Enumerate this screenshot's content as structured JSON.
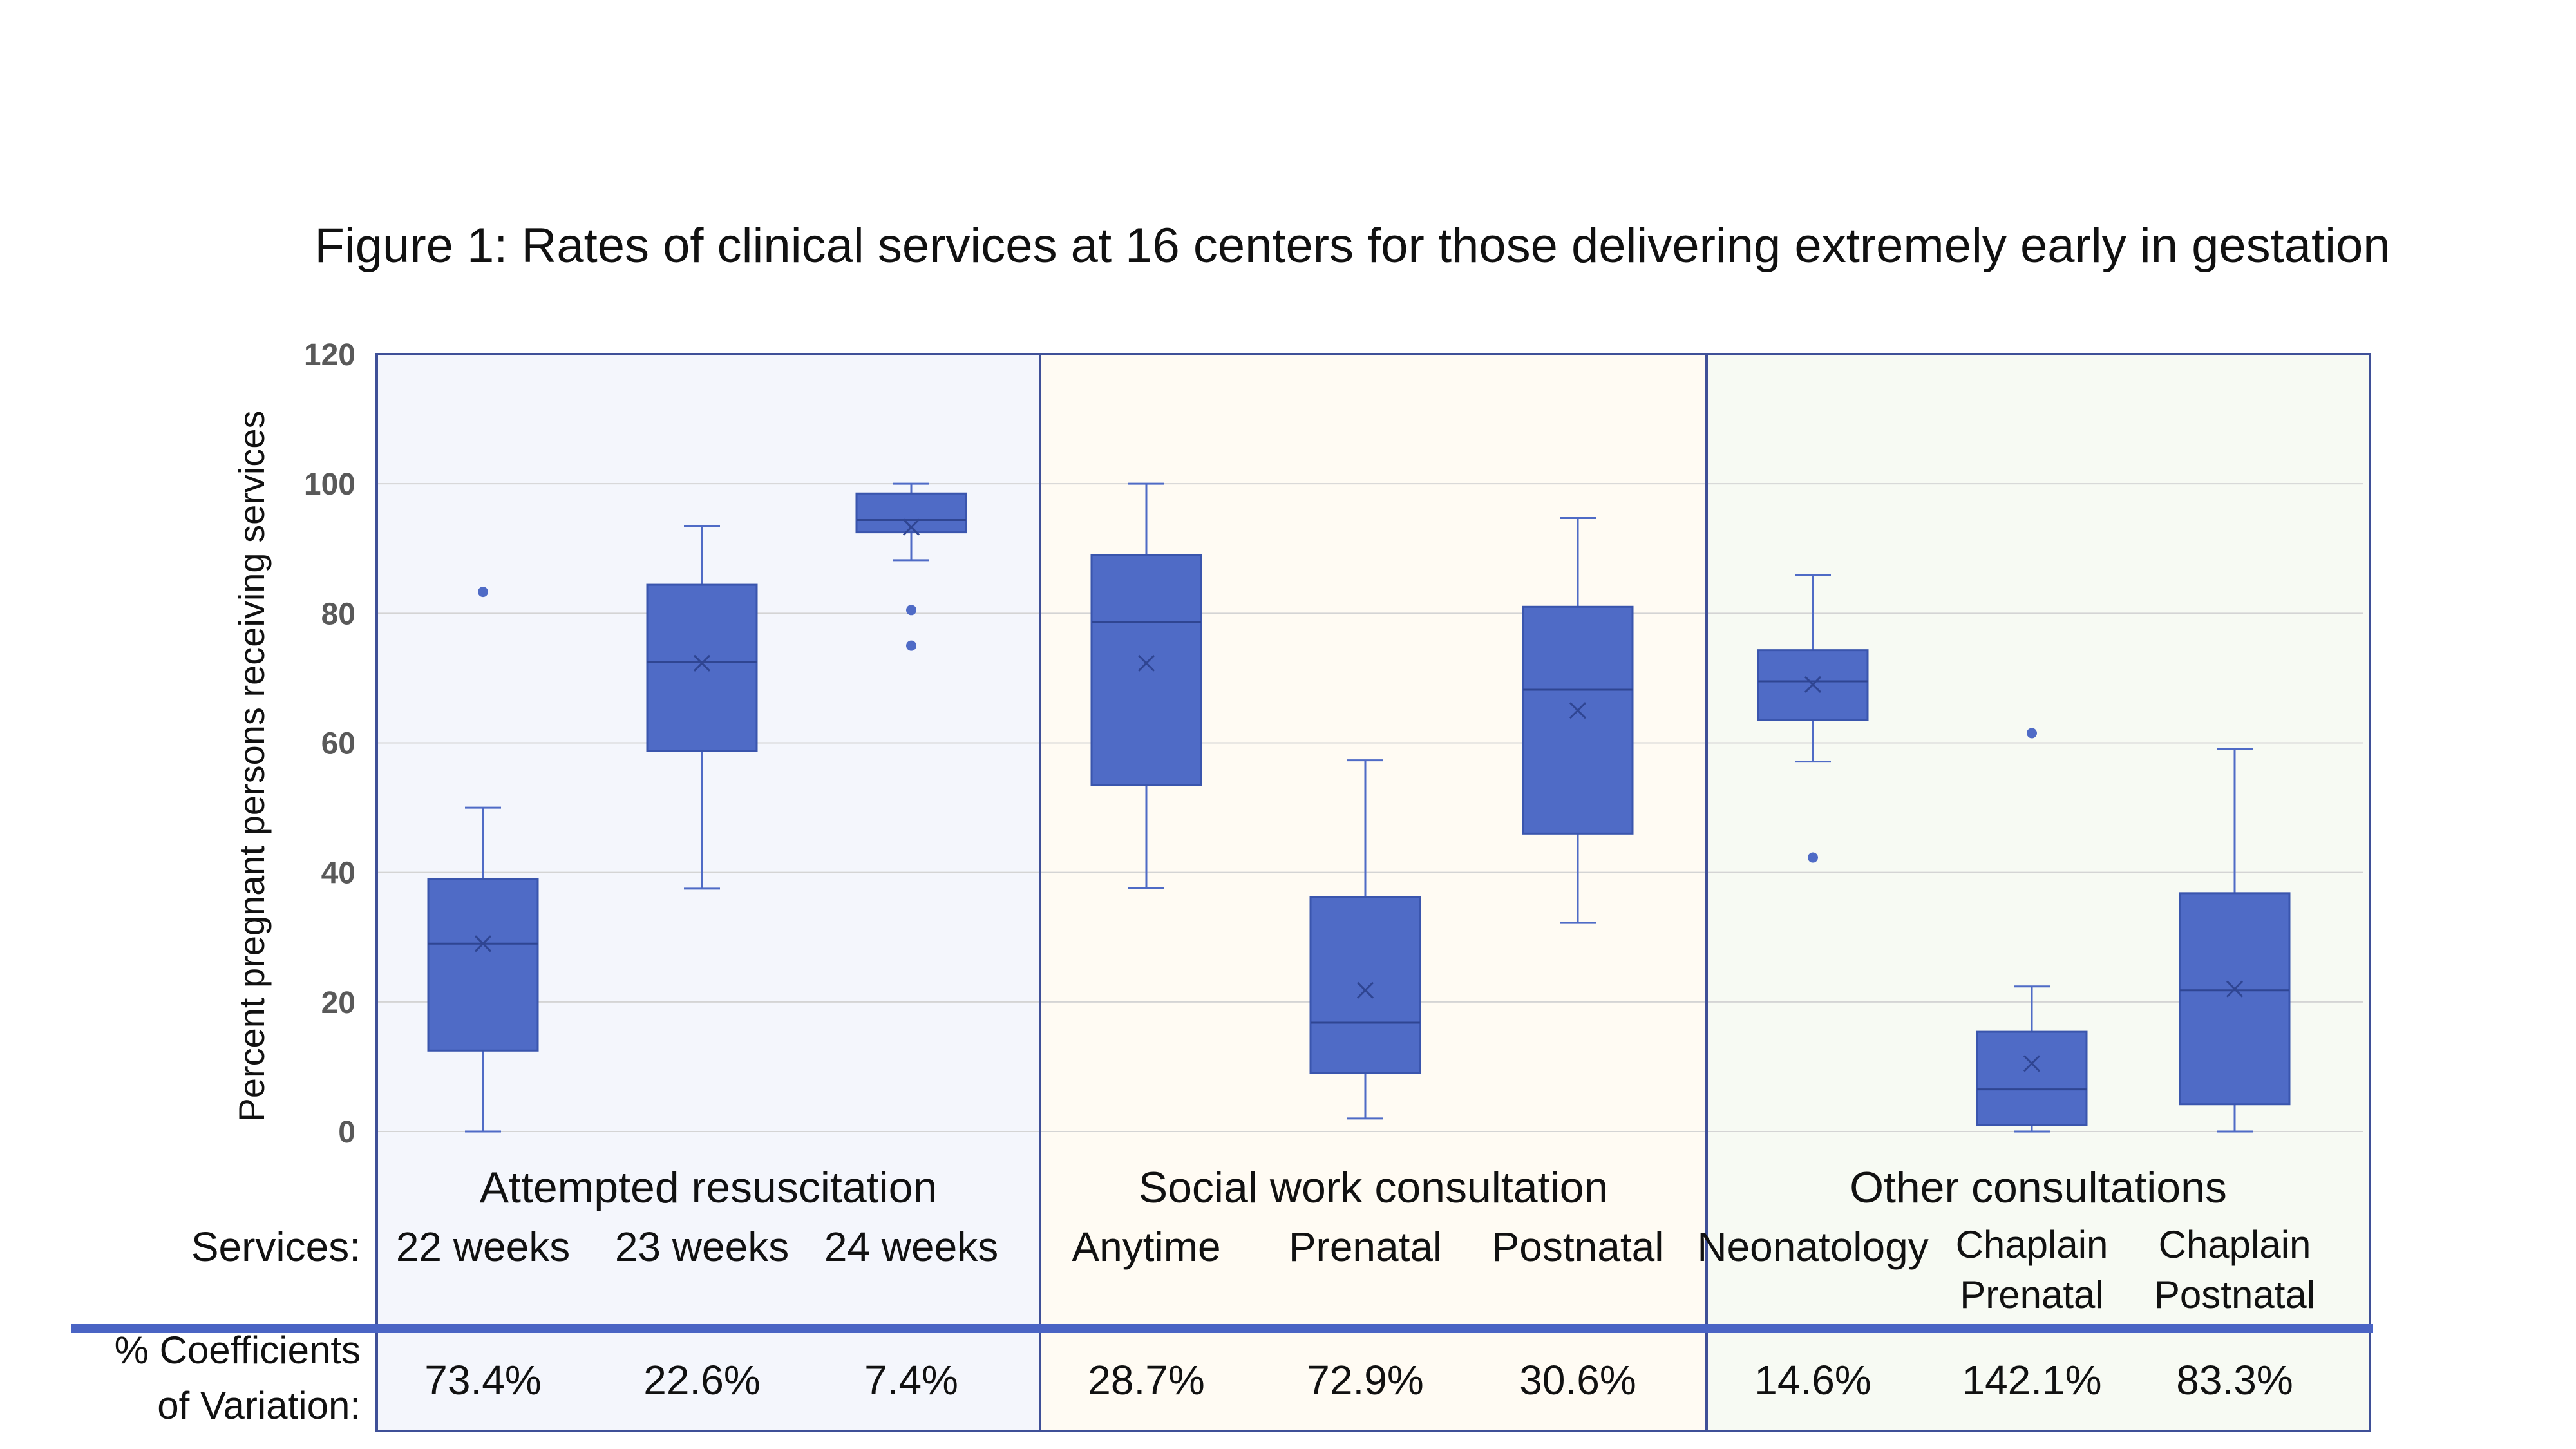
{
  "chart_data": {
    "type": "box",
    "title": "Figure 1: Rates of clinical services at 16 centers for those delivering extremely early in gestation",
    "ylabel": "Percent pregnant persons receiving services",
    "ylim": [
      0,
      120
    ],
    "yticks": [
      "0",
      "20",
      "40",
      "60",
      "80",
      "100",
      "120"
    ],
    "grid": true,
    "box_color": "#4f6bc6",
    "services_label": "Services:",
    "cv_label_line1": "% Coefficients",
    "cv_label_line2": "of Variation:",
    "groups": [
      {
        "name": "Attempted resuscitation",
        "background": "#f4f6fc",
        "categories": [
          {
            "label": [
              "22 weeks"
            ],
            "min": 0,
            "q1": 12.5,
            "median": 29,
            "q3": 39,
            "max": 50,
            "mean": 29,
            "outliers": [
              83.3
            ],
            "cv": "73.4%"
          },
          {
            "label": [
              "23 weeks"
            ],
            "min": 37.5,
            "q1": 58.8,
            "median": 72.5,
            "q3": 84.4,
            "max": 93.5,
            "mean": 72.3,
            "outliers": [],
            "cv": "22.6%"
          },
          {
            "label": [
              "24 weeks"
            ],
            "min": 88.2,
            "q1": 92.5,
            "median": 94.4,
            "q3": 98.5,
            "max": 100,
            "mean": 93.3,
            "outliers": [
              80.5,
              75
            ],
            "cv": "7.4%"
          }
        ]
      },
      {
        "name": "Social work consultation",
        "background": "#fffbf3",
        "categories": [
          {
            "label": [
              "Anytime"
            ],
            "min": 37.6,
            "q1": 53.5,
            "median": 78.6,
            "q3": 89,
            "max": 100,
            "mean": 72.3,
            "outliers": [],
            "cv": "28.7%"
          },
          {
            "label": [
              "Prenatal"
            ],
            "min": 2,
            "q1": 9,
            "median": 16.8,
            "q3": 36.2,
            "max": 57.3,
            "mean": 21.8,
            "outliers": [],
            "cv": "72.9%"
          },
          {
            "label": [
              "Postnatal"
            ],
            "min": 32.2,
            "q1": 46,
            "median": 68.2,
            "q3": 81,
            "max": 94.7,
            "mean": 65,
            "outliers": [],
            "cv": "30.6%"
          }
        ]
      },
      {
        "name": "Other consultations",
        "background": "#f7faf3",
        "categories": [
          {
            "label": [
              "Neonatology"
            ],
            "min": 57.1,
            "q1": 63.5,
            "median": 69.5,
            "q3": 74.3,
            "max": 85.9,
            "mean": 69,
            "outliers": [
              42.3
            ],
            "cv": "14.6%"
          },
          {
            "label": [
              "Chaplain",
              "Prenatal"
            ],
            "min": 0,
            "q1": 1,
            "median": 6.5,
            "q3": 15.4,
            "max": 22.4,
            "mean": 10.5,
            "outliers": [
              61.5
            ],
            "cv": "142.1%"
          },
          {
            "label": [
              "Chaplain",
              "Postnatal"
            ],
            "min": 0,
            "q1": 4.2,
            "median": 21.8,
            "q3": 36.8,
            "max": 59,
            "mean": 22,
            "outliers": [],
            "cv": "83.3%"
          }
        ]
      }
    ]
  }
}
